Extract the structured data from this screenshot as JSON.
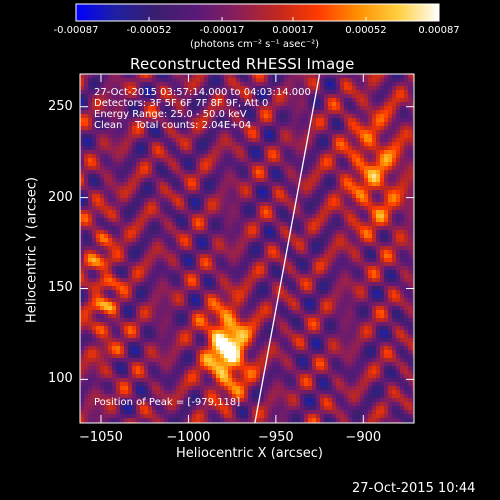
{
  "colorbar": {
    "tick_labels": [
      "-0.00087",
      "-0.00052",
      "-0.00017",
      "0.00017",
      "0.00052",
      "0.00087"
    ],
    "min": -0.00087,
    "max": 0.00087,
    "units_text": "(photons cm⁻² s⁻¹ asec⁻²)",
    "colormap": [
      "#0000ff",
      "#2020a0",
      "#3a1e6e",
      "#5a1a78",
      "#8a1e5a",
      "#c0281e",
      "#ff3a00",
      "#ff9000",
      "#ffd040",
      "#ffffff"
    ]
  },
  "title": "Reconstructed RHESSI Image",
  "info": {
    "line1": "27-Oct-2015 03:57:14.000 to 04:03:14.000",
    "line2": "Detectors: 3F 5F 6F 7F 8F 9F, Att 0",
    "line3": "Energy Range: 25.0 - 50.0 keV",
    "line4": "Clean    Total counts: 2.04E+04",
    "peak": "Position of Peak = [-979,118]"
  },
  "timestamp": "27-Oct-2015 10:44",
  "chart_data": {
    "type": "heatmap",
    "title": "Reconstructed RHESSI Image",
    "xlabel": "Heliocentric X (arcsec)",
    "ylabel": "Heliocentric Y (arcsec)",
    "xlim": [
      -1062,
      -871
    ],
    "ylim": [
      76,
      268
    ],
    "x_ticks": [
      -1050,
      -1000,
      -950,
      -900
    ],
    "x_tick_labels": [
      "−1050",
      "−1000",
      "−950",
      "−900"
    ],
    "y_ticks": [
      100,
      150,
      200,
      250
    ],
    "y_tick_labels": [
      "100",
      "150",
      "200",
      "250"
    ],
    "value_range": [
      -0.00087,
      0.00087
    ],
    "peak_position": [
      -979,
      118
    ],
    "limb_line": [
      [
        -962,
        76
      ],
      [
        -925,
        268
      ]
    ]
  }
}
